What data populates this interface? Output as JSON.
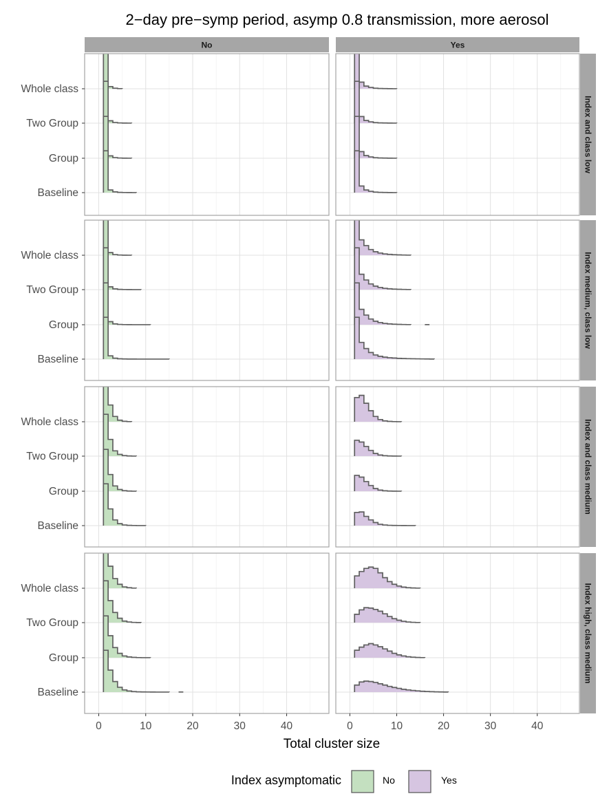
{
  "chart_data": {
    "type": "ridgeline-histogram",
    "title": "2−day pre−symp period, asymp 0.8 transmission, more aerosol",
    "xlabel": "Total cluster size",
    "ylabel": "",
    "xlim": [
      -3,
      49
    ],
    "x_ticks": [
      0,
      10,
      20,
      30,
      40
    ],
    "x_tick_labels": [
      "0",
      "10",
      "20",
      "30",
      "40"
    ],
    "grid": true,
    "columns": [
      "No",
      "Yes"
    ],
    "rows": [
      "Index and class low",
      "Index medium, class low",
      "Index and class medium",
      "Index high, class medium"
    ],
    "y_categories": [
      "Whole class",
      "Two Group",
      "Group",
      "Baseline"
    ],
    "legend": {
      "title": "Index asymptomatic",
      "position": "bottom",
      "entries": [
        {
          "label": "No",
          "color": "#c4e0c0"
        },
        {
          "label": "Yes",
          "color": "#d6c5e1"
        }
      ]
    },
    "colors": {
      "No": "#c4e0c0",
      "Yes": "#d6c5e1",
      "outline": "#5f5f5f",
      "strip": "#a6a6a6",
      "grid": "#e1e1e1",
      "panel_border": "#a3a3a3"
    },
    "series_note_units": "heights are relative density per cluster size",
    "panels": [
      {
        "row": 0,
        "column": "No",
        "series": [
          {
            "scenario": "Whole class",
            "x_start": 1,
            "heights": [
              9.5,
              0.5,
              0.12,
              0.03
            ]
          },
          {
            "scenario": "Two Group",
            "x_start": 1,
            "heights": [
              9.5,
              0.55,
              0.15,
              0.05,
              0.02,
              0.01
            ]
          },
          {
            "scenario": "Group",
            "x_start": 1,
            "heights": [
              9.5,
              0.55,
              0.15,
              0.05,
              0.02,
              0.01
            ]
          },
          {
            "scenario": "Baseline",
            "x_start": 1,
            "heights": [
              9.5,
              0.6,
              0.18,
              0.06,
              0.03,
              0.02,
              0.01
            ]
          }
        ]
      },
      {
        "row": 0,
        "column": "Yes",
        "series": [
          {
            "scenario": "Whole class",
            "x_start": 1,
            "heights": [
              9.5,
              1.5,
              0.6,
              0.3,
              0.12,
              0.06,
              0.04,
              0.02,
              0.01
            ]
          },
          {
            "scenario": "Two Group",
            "x_start": 1,
            "heights": [
              9.5,
              1.5,
              0.6,
              0.3,
              0.12,
              0.06,
              0.04,
              0.02,
              0.01
            ]
          },
          {
            "scenario": "Group",
            "x_start": 1,
            "heights": [
              9.5,
              1.5,
              0.6,
              0.3,
              0.12,
              0.06,
              0.04,
              0.02,
              0.01
            ]
          },
          {
            "scenario": "Baseline",
            "x_start": 1,
            "heights": [
              9.5,
              1.5,
              0.6,
              0.3,
              0.12,
              0.06,
              0.04,
              0.02,
              0.01
            ]
          }
        ]
      },
      {
        "row": 1,
        "column": "No",
        "series": [
          {
            "scenario": "Whole class",
            "x_start": 1,
            "heights": [
              9.5,
              0.6,
              0.15,
              0.05,
              0.02,
              0.01
            ]
          },
          {
            "scenario": "Two Group",
            "x_start": 1,
            "heights": [
              9.5,
              0.65,
              0.18,
              0.06,
              0.03,
              0.02,
              0.01,
              0.01
            ]
          },
          {
            "scenario": "Group",
            "x_start": 1,
            "heights": [
              9.5,
              0.7,
              0.2,
              0.07,
              0.03,
              0.02,
              0.01,
              0.01,
              0.01,
              0.01
            ]
          },
          {
            "scenario": "Baseline",
            "x_start": 1,
            "heights": [
              9.5,
              0.75,
              0.22,
              0.08,
              0.04,
              0.02,
              0.02,
              0.01,
              0.01,
              0.01,
              0.01,
              0.01,
              0.01,
              0.01
            ]
          }
        ]
      },
      {
        "row": 1,
        "column": "Yes",
        "series": [
          {
            "scenario": "Whole class",
            "x_start": 1,
            "heights": [
              9.5,
              3.5,
              2.2,
              1.3,
              0.8,
              0.5,
              0.3,
              0.2,
              0.12,
              0.08,
              0.05,
              0.03
            ]
          },
          {
            "scenario": "Two Group",
            "x_start": 1,
            "heights": [
              9.5,
              3.5,
              2.2,
              1.3,
              0.8,
              0.5,
              0.3,
              0.2,
              0.12,
              0.08,
              0.05,
              0.03
            ]
          },
          {
            "scenario": "Group",
            "x_start": 1,
            "heights": [
              9.5,
              3.5,
              2.2,
              1.3,
              0.8,
              0.5,
              0.3,
              0.2,
              0.12,
              0.08,
              0.05,
              0.03
            ],
            "outlier": {
              "x_from": 16,
              "x_to": 17
            }
          },
          {
            "scenario": "Baseline",
            "x_start": 1,
            "heights": [
              9.5,
              3.8,
              2.4,
              1.5,
              0.95,
              0.65,
              0.45,
              0.32,
              0.25,
              0.18,
              0.14,
              0.11,
              0.09,
              0.07,
              0.05,
              0.04,
              0.02
            ]
          }
        ]
      },
      {
        "row": 2,
        "column": "No",
        "series": [
          {
            "scenario": "Whole class",
            "x_start": 1,
            "heights": [
              9.5,
              3.8,
              1.2,
              0.35,
              0.1,
              0.03
            ]
          },
          {
            "scenario": "Two Group",
            "x_start": 1,
            "heights": [
              9.5,
              3.8,
              1.2,
              0.4,
              0.12,
              0.04,
              0.01
            ]
          },
          {
            "scenario": "Group",
            "x_start": 1,
            "heights": [
              9.5,
              3.8,
              1.2,
              0.4,
              0.12,
              0.04,
              0.01
            ]
          },
          {
            "scenario": "Baseline",
            "x_start": 1,
            "heights": [
              9.5,
              3.8,
              1.3,
              0.45,
              0.15,
              0.06,
              0.03,
              0.01,
              0.01
            ]
          }
        ]
      },
      {
        "row": 2,
        "column": "Yes",
        "series": [
          {
            "scenario": "Whole class",
            "x_start": 1,
            "heights": [
              5.5,
              6.0,
              4.2,
              2.5,
              1.2,
              0.5,
              0.2,
              0.08,
              0.03,
              0.01
            ]
          },
          {
            "scenario": "Two Group",
            "x_start": 1,
            "heights": [
              3.6,
              3.2,
              2.2,
              1.3,
              0.6,
              0.25,
              0.1,
              0.04,
              0.02,
              0.01
            ]
          },
          {
            "scenario": "Group",
            "x_start": 1,
            "heights": [
              3.6,
              3.2,
              2.2,
              1.3,
              0.6,
              0.25,
              0.1,
              0.04,
              0.02,
              0.01
            ]
          },
          {
            "scenario": "Baseline",
            "x_start": 1,
            "heights": [
              3.0,
              3.1,
              2.1,
              1.3,
              0.7,
              0.3,
              0.15,
              0.07,
              0.04,
              0.03,
              0.02,
              0.01,
              0.01
            ]
          }
        ]
      },
      {
        "row": 3,
        "column": "No",
        "series": [
          {
            "scenario": "Whole class",
            "x_start": 1,
            "heights": [
              9.5,
              5.0,
              2.2,
              0.9,
              0.3,
              0.12,
              0.03
            ]
          },
          {
            "scenario": "Two Group",
            "x_start": 1,
            "heights": [
              9.5,
              5.0,
              2.3,
              1.0,
              0.35,
              0.15,
              0.05,
              0.02
            ]
          },
          {
            "scenario": "Group",
            "x_start": 1,
            "heights": [
              9.5,
              5.0,
              2.3,
              1.0,
              0.4,
              0.18,
              0.08,
              0.03,
              0.01,
              0.01
            ]
          },
          {
            "scenario": "Baseline",
            "x_start": 1,
            "heights": [
              9.5,
              5.0,
              2.4,
              1.1,
              0.5,
              0.25,
              0.12,
              0.06,
              0.04,
              0.03,
              0.02,
              0.01,
              0.01,
              0.01
            ],
            "outlier": {
              "x_from": 17,
              "x_to": 18
            }
          }
        ]
      },
      {
        "row": 3,
        "column": "Yes",
        "series": [
          {
            "scenario": "Whole class",
            "x_start": 1,
            "heights": [
              2.8,
              3.8,
              4.5,
              4.8,
              4.5,
              3.5,
              2.4,
              1.5,
              0.9,
              0.5,
              0.25,
              0.12,
              0.06,
              0.03
            ]
          },
          {
            "scenario": "Two Group",
            "x_start": 1,
            "heights": [
              1.9,
              2.9,
              3.4,
              3.3,
              3.0,
              2.6,
              2.0,
              1.4,
              0.9,
              0.55,
              0.3,
              0.15,
              0.07,
              0.03
            ]
          },
          {
            "scenario": "Group",
            "x_start": 1,
            "heights": [
              1.7,
              2.4,
              2.9,
              3.2,
              2.9,
              2.5,
              2.0,
              1.5,
              1.0,
              0.65,
              0.4,
              0.22,
              0.12,
              0.06,
              0.03
            ]
          },
          {
            "scenario": "Baseline",
            "x_start": 1,
            "heights": [
              1.6,
              2.3,
              2.5,
              2.4,
              2.2,
              1.9,
              1.6,
              1.3,
              1.05,
              0.85,
              0.65,
              0.5,
              0.38,
              0.28,
              0.2,
              0.14,
              0.1,
              0.06,
              0.04,
              0.02
            ]
          }
        ]
      }
    ]
  }
}
